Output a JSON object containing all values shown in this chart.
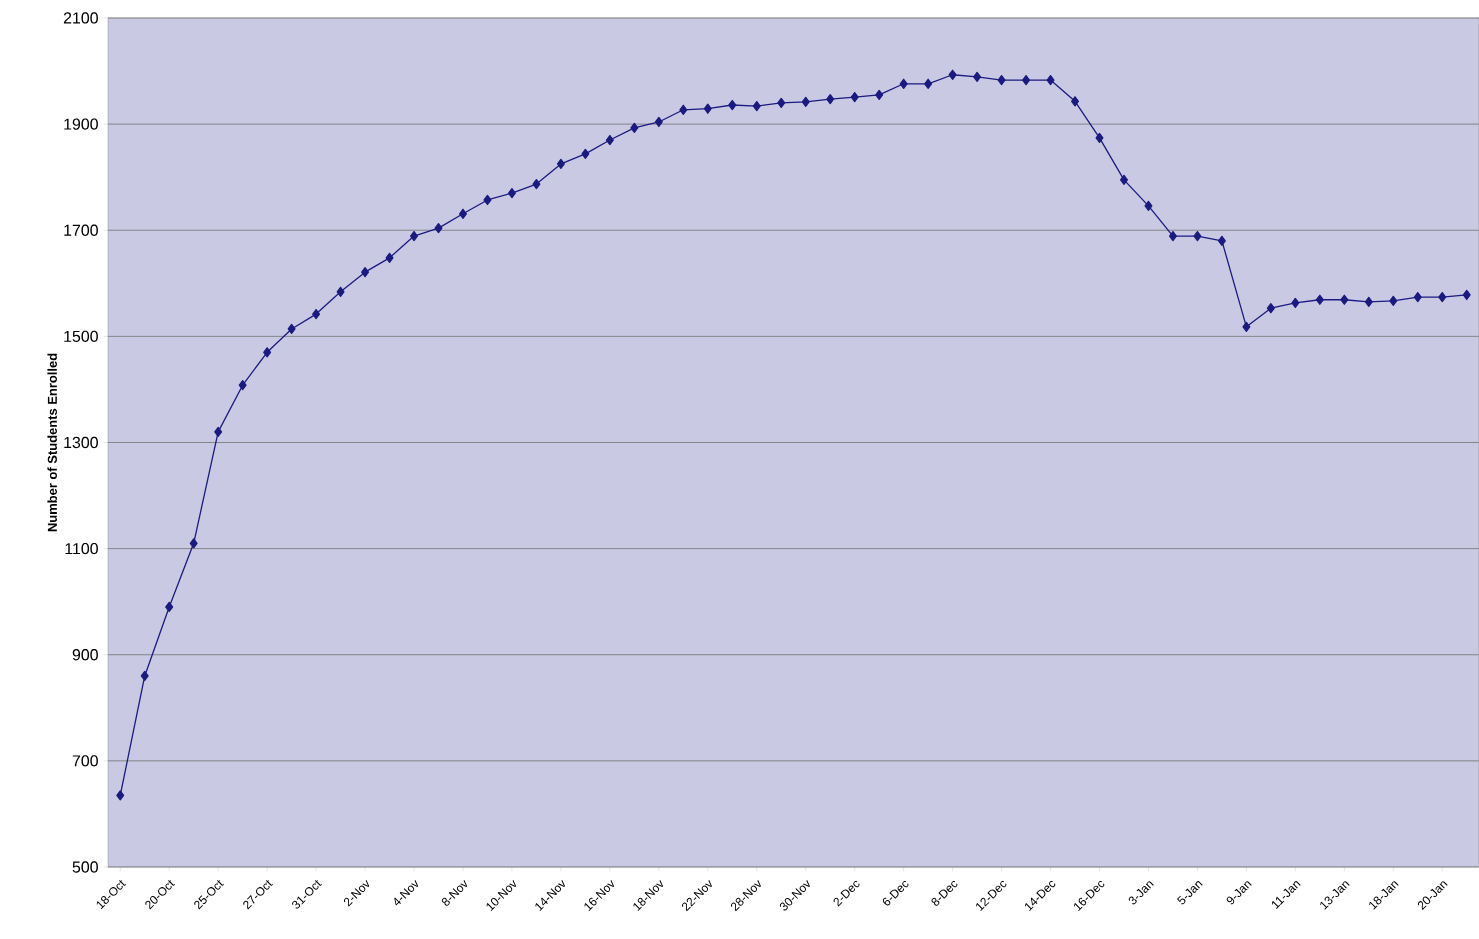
{
  "chart_data": {
    "type": "line",
    "ylabel": "Number of Students Enrolled",
    "categories": [
      "18-Oct",
      null,
      "20-Oct",
      null,
      "25-Oct",
      null,
      "27-Oct",
      null,
      "31-Oct",
      null,
      "2-Nov",
      null,
      "4-Nov",
      null,
      "8-Nov",
      null,
      "10-Nov",
      null,
      "14-Nov",
      null,
      "16-Nov",
      null,
      "18-Nov",
      null,
      "22-Nov",
      null,
      "28-Nov",
      null,
      "30-Nov",
      null,
      "2-Dec",
      null,
      "6-Dec",
      null,
      "8-Dec",
      null,
      "12-Dec",
      null,
      "14-Dec",
      null,
      "16-Dec",
      null,
      "3-Jan",
      null,
      "5-Jan",
      null,
      "9-Jan",
      null,
      "11-Jan",
      null,
      "13-Jan",
      null,
      "18-Jan",
      null,
      "20-Jan",
      null
    ],
    "series": [
      {
        "color": "#1a1a80",
        "values": [
          635,
          860,
          990,
          1110,
          1320,
          1408,
          1470,
          1514,
          1542,
          1584,
          1621,
          1648,
          1689,
          1704,
          1731,
          1757,
          1770,
          1787,
          1825,
          1844,
          1870,
          1893,
          1904,
          1927,
          1929,
          1936,
          1934,
          1940,
          1942,
          1947,
          1951,
          1955,
          1976,
          1976,
          1993,
          1989,
          1983,
          1983,
          1983,
          1943,
          1874,
          1795,
          1746,
          1689,
          1689,
          1680,
          1518,
          1553,
          1563,
          1569,
          1569,
          1565,
          1567,
          1574,
          1574,
          1578
        ]
      }
    ],
    "ylim": [
      500,
      2100
    ],
    "yticks": [
      500,
      700,
      900,
      1100,
      1300,
      1500,
      1700,
      1900,
      2100
    ],
    "grid": "y",
    "marker": "diamond",
    "line_style": "solid"
  }
}
